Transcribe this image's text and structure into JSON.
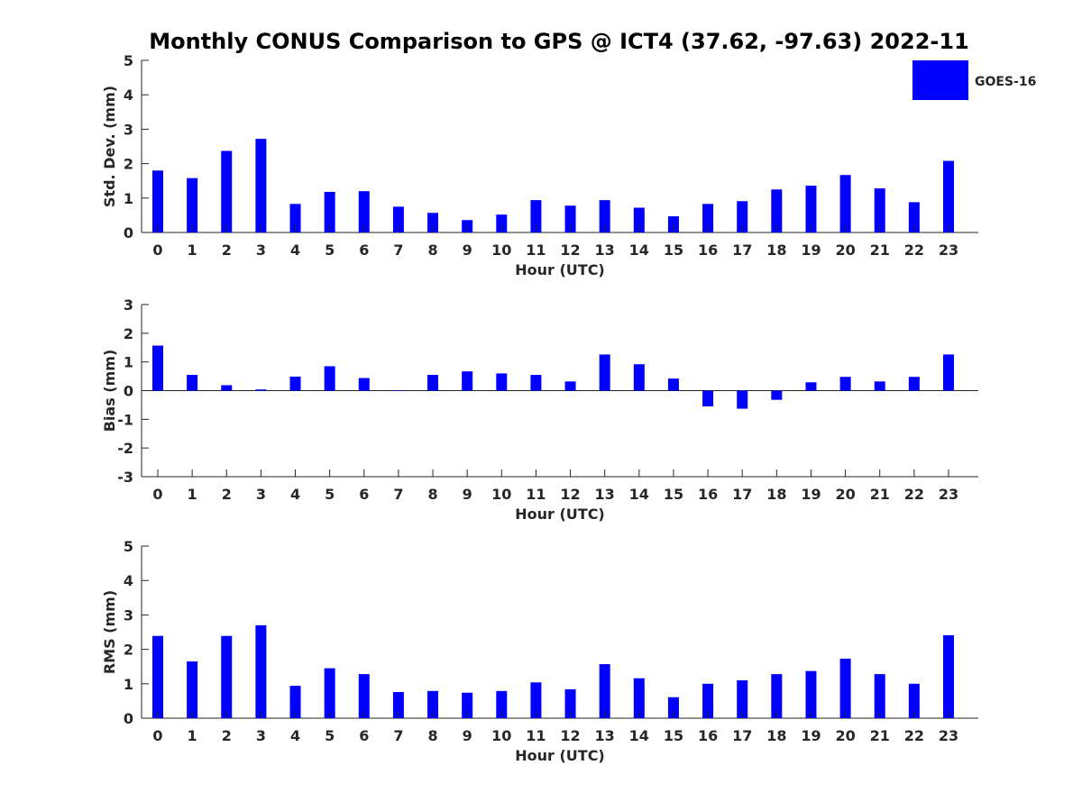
{
  "title": "Monthly CONUS Comparison to GPS @ ICT4 (37.62, -97.63) 2022-11",
  "legend": {
    "label": "GOES-16",
    "color": "#0000ff",
    "placement": "top-right"
  },
  "chart_data": [
    {
      "type": "bar",
      "ylabel": "Std. Dev. (mm)",
      "xlabel": "Hour (UTC)",
      "ylim": [
        0,
        5
      ],
      "yticks": [
        0,
        1,
        2,
        3,
        4,
        5
      ],
      "categories": [
        "0",
        "1",
        "2",
        "3",
        "4",
        "5",
        "6",
        "7",
        "8",
        "9",
        "10",
        "11",
        "12",
        "13",
        "14",
        "15",
        "16",
        "17",
        "18",
        "19",
        "20",
        "21",
        "22",
        "23"
      ],
      "series": [
        {
          "name": "GOES-16",
          "values": [
            1.8,
            1.58,
            2.37,
            2.72,
            0.83,
            1.18,
            1.2,
            0.75,
            0.57,
            0.36,
            0.52,
            0.94,
            0.78,
            0.94,
            0.72,
            0.47,
            0.83,
            0.91,
            1.25,
            1.36,
            1.67,
            1.28,
            0.88,
            2.08
          ]
        }
      ]
    },
    {
      "type": "bar",
      "ylabel": "Bias (mm)",
      "xlabel": "Hour (UTC)",
      "ylim": [
        -3,
        3
      ],
      "yticks": [
        -3,
        -2,
        -1,
        0,
        1,
        2,
        3
      ],
      "categories": [
        "0",
        "1",
        "2",
        "3",
        "4",
        "5",
        "6",
        "7",
        "8",
        "9",
        "10",
        "11",
        "12",
        "13",
        "14",
        "15",
        "16",
        "17",
        "18",
        "19",
        "20",
        "21",
        "22",
        "23"
      ],
      "series": [
        {
          "name": "GOES-16",
          "values": [
            1.57,
            0.55,
            0.19,
            0.04,
            0.49,
            0.85,
            0.44,
            0.0,
            0.55,
            0.67,
            0.6,
            0.55,
            0.32,
            1.26,
            0.92,
            0.42,
            -0.55,
            -0.63,
            -0.32,
            0.29,
            0.48,
            0.32,
            0.48,
            1.26
          ]
        }
      ]
    },
    {
      "type": "bar",
      "ylabel": "RMS (mm)",
      "xlabel": "Hour (UTC)",
      "ylim": [
        0,
        5
      ],
      "yticks": [
        0,
        1,
        2,
        3,
        4,
        5
      ],
      "categories": [
        "0",
        "1",
        "2",
        "3",
        "4",
        "5",
        "6",
        "7",
        "8",
        "9",
        "10",
        "11",
        "12",
        "13",
        "14",
        "15",
        "16",
        "17",
        "18",
        "19",
        "20",
        "21",
        "22",
        "23"
      ],
      "series": [
        {
          "name": "GOES-16",
          "values": [
            2.39,
            1.65,
            2.39,
            2.7,
            0.94,
            1.45,
            1.28,
            0.76,
            0.79,
            0.74,
            0.79,
            1.04,
            0.84,
            1.57,
            1.16,
            0.61,
            1.0,
            1.1,
            1.28,
            1.37,
            1.73,
            1.28,
            1.0,
            2.41
          ]
        }
      ]
    }
  ]
}
